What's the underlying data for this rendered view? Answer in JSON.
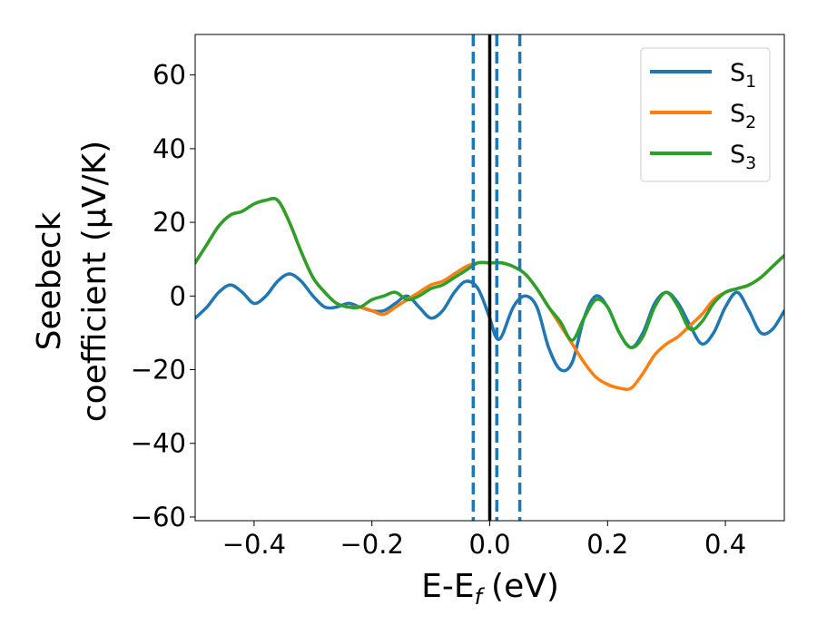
{
  "chart_data": {
    "type": "line",
    "xlabel": "E-E",
    "xlabel_sub": "f",
    "xlabel_unit": "(eV)",
    "ylabel_line1": "Seebeck",
    "ylabel_line2": "coefficient  (μV/K)",
    "xlim": [
      -0.5,
      0.5
    ],
    "ylim": [
      -61,
      71
    ],
    "xticks": [
      {
        "value": -0.4,
        "label": "−0.4"
      },
      {
        "value": -0.2,
        "label": "−0.2"
      },
      {
        "value": 0.0,
        "label": "0.0"
      },
      {
        "value": 0.2,
        "label": "0.2"
      },
      {
        "value": 0.4,
        "label": "0.4"
      }
    ],
    "yticks": [
      {
        "value": -60,
        "label": "−60"
      },
      {
        "value": -40,
        "label": "−40"
      },
      {
        "value": -20,
        "label": "−20"
      },
      {
        "value": 0,
        "label": "0"
      },
      {
        "value": 20,
        "label": "20"
      },
      {
        "value": 40,
        "label": "40"
      },
      {
        "value": 60,
        "label": "60"
      }
    ],
    "legend_position": "top-right",
    "vlines": [
      {
        "x": 0.0,
        "style": "solid",
        "color": "#000000"
      },
      {
        "x": -0.028,
        "style": "dashed",
        "color": "#1f77b4"
      },
      {
        "x": 0.012,
        "style": "dashed",
        "color": "#1f77b4"
      },
      {
        "x": 0.051,
        "style": "dashed",
        "color": "#1f77b4"
      }
    ],
    "series": [
      {
        "name": "S",
        "sub": "1",
        "color": "#1f77b4",
        "x": [
          -0.5,
          -0.48,
          -0.46,
          -0.44,
          -0.42,
          -0.4,
          -0.38,
          -0.36,
          -0.34,
          -0.32,
          -0.3,
          -0.28,
          -0.26,
          -0.24,
          -0.22,
          -0.2,
          -0.18,
          -0.16,
          -0.14,
          -0.12,
          -0.1,
          -0.08,
          -0.06,
          -0.04,
          -0.02,
          0.0,
          0.01,
          0.02,
          0.04,
          0.06,
          0.08,
          0.1,
          0.12,
          0.14,
          0.16,
          0.18,
          0.2,
          0.22,
          0.24,
          0.26,
          0.28,
          0.3,
          0.32,
          0.34,
          0.36,
          0.38,
          0.4,
          0.42,
          0.44,
          0.46,
          0.48,
          0.5
        ],
        "values": [
          -6,
          -3,
          1,
          3,
          1,
          -2,
          0,
          4,
          6,
          4,
          0,
          -3,
          -3,
          -2,
          -3,
          -4,
          -4,
          -2,
          0,
          -3,
          -6,
          -4,
          1,
          4,
          2,
          -6,
          -11,
          -11,
          -3,
          0,
          -3,
          -14,
          -20,
          -18,
          -6,
          0,
          -3,
          -10,
          -14,
          -10,
          -2,
          1,
          -2,
          -8,
          -13,
          -10,
          -3,
          1,
          -4,
          -10,
          -9,
          -4
        ]
      },
      {
        "name": "S",
        "sub": "2",
        "color": "#ff7f0e",
        "x": [
          -0.5,
          -0.48,
          -0.46,
          -0.44,
          -0.42,
          -0.4,
          -0.38,
          -0.36,
          -0.34,
          -0.32,
          -0.3,
          -0.28,
          -0.26,
          -0.24,
          -0.22,
          -0.2,
          -0.18,
          -0.16,
          -0.14,
          -0.12,
          -0.1,
          -0.08,
          -0.06,
          -0.04,
          -0.02,
          0.0,
          0.02,
          0.04,
          0.06,
          0.08,
          0.1,
          0.12,
          0.14,
          0.16,
          0.18,
          0.2,
          0.22,
          0.24,
          0.26,
          0.28,
          0.3,
          0.32,
          0.34,
          0.36,
          0.38,
          0.4,
          0.42,
          0.44,
          0.46,
          0.48,
          0.5
        ],
        "values": [
          9,
          14,
          19,
          22,
          23,
          25,
          26,
          26,
          20,
          12,
          5,
          1,
          -2,
          -3,
          -3,
          -4,
          -5,
          -3,
          -1,
          1,
          3,
          4,
          6,
          8,
          9,
          9,
          9,
          8,
          6,
          2,
          -3,
          -8,
          -13,
          -18,
          -22,
          -24,
          -25,
          -25,
          -21,
          -16,
          -13,
          -11,
          -8,
          -5,
          -1,
          1,
          2,
          3,
          5,
          8,
          11
        ]
      },
      {
        "name": "S",
        "sub": "3",
        "color": "#2ca02c",
        "x": [
          -0.5,
          -0.48,
          -0.46,
          -0.44,
          -0.42,
          -0.4,
          -0.38,
          -0.36,
          -0.34,
          -0.32,
          -0.3,
          -0.28,
          -0.26,
          -0.24,
          -0.22,
          -0.2,
          -0.18,
          -0.16,
          -0.14,
          -0.12,
          -0.1,
          -0.08,
          -0.06,
          -0.04,
          -0.02,
          0.0,
          0.02,
          0.04,
          0.06,
          0.08,
          0.1,
          0.12,
          0.14,
          0.16,
          0.18,
          0.2,
          0.22,
          0.24,
          0.26,
          0.28,
          0.3,
          0.32,
          0.34,
          0.36,
          0.38,
          0.4,
          0.42,
          0.44,
          0.46,
          0.48,
          0.5
        ],
        "values": [
          9,
          14,
          19,
          22,
          23,
          25,
          26,
          26,
          20,
          12,
          5,
          1,
          -2,
          -3,
          -3,
          -1,
          0,
          1,
          -1,
          0,
          2,
          3,
          5,
          7,
          9,
          9,
          9,
          8,
          6,
          2,
          -3,
          -7,
          -12,
          -6,
          -1,
          -3,
          -10,
          -14,
          -11,
          -3,
          1,
          -3,
          -9,
          -7,
          -2,
          1,
          2,
          3,
          5,
          8,
          11
        ]
      }
    ]
  }
}
